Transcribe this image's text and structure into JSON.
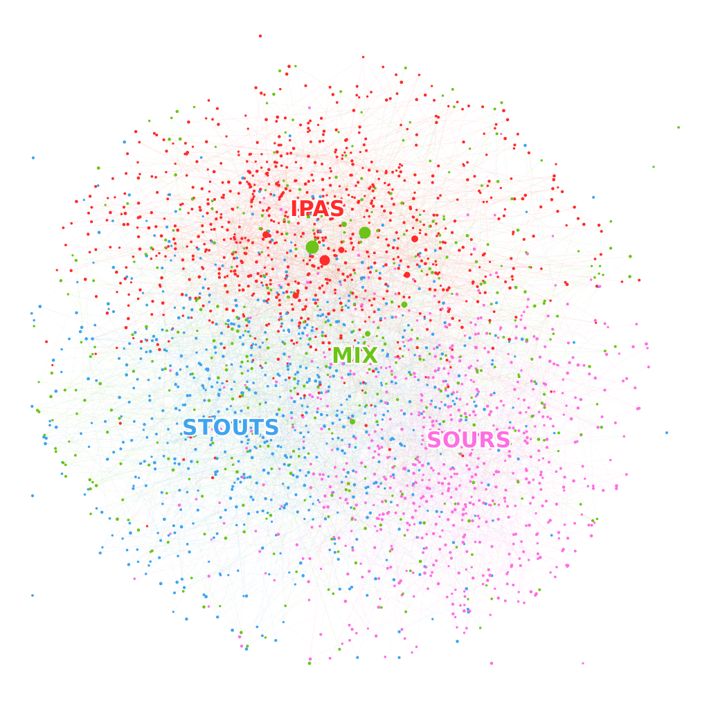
{
  "clusters": {
    "ipas": {
      "label": "IPAS",
      "color": "#ff2a2a"
    },
    "mix": {
      "label": "MIX",
      "color": "#6cc417"
    },
    "stouts": {
      "label": "STOUTS",
      "color": "#3fa4ee"
    },
    "sours": {
      "label": "SOURS",
      "color": "#ff6ee1"
    }
  },
  "diagram": {
    "type": "network-graph",
    "background": "#ffffff",
    "node_colors": {
      "ipas": "#ff2a2a",
      "mix": "#6cc417",
      "stouts": "#3fa4ee",
      "sours": "#ff6ee1"
    }
  }
}
